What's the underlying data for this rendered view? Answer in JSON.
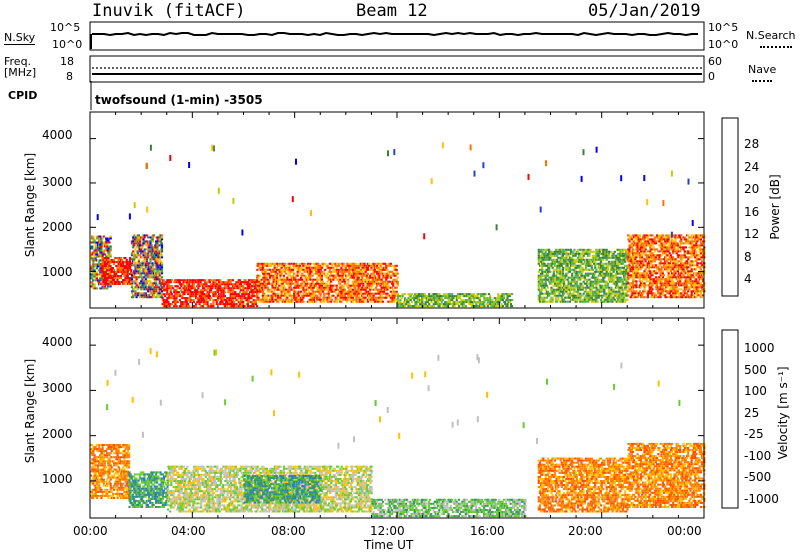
{
  "header": {
    "station": "Inuvik (fitACF)",
    "beam": "Beam 12",
    "date": "05/Jan/2019"
  },
  "top_panels": {
    "nsky_label": "N.Sky",
    "nsky_ticks": [
      "10^5",
      "10^0"
    ],
    "nsearch_label": "N.Search",
    "nsearch_ticks": [
      "10^5",
      "10^0"
    ],
    "freq_label_1": "Freq.",
    "freq_label_2": "[MHz]",
    "freq_ticks": [
      "18",
      "8"
    ],
    "nave_label": "Nave",
    "nave_ticks": [
      "60",
      "0"
    ],
    "cpid_label": "CPID",
    "cpid_value": "twofsound (1-min) -3505"
  },
  "power_panel": {
    "ylabel": "Slant Range [km]",
    "yticks": [
      "4000",
      "3000",
      "2000",
      "1000"
    ],
    "colorbar_label": "Power [dB]",
    "colorbar_ticks": [
      "28",
      "24",
      "20",
      "16",
      "12",
      "8",
      "4"
    ],
    "colors": [
      "#0000ff",
      "#2244cc",
      "#3a7f3a",
      "#55b04a",
      "#bfd000",
      "#ffc000",
      "#ff7000",
      "#ff0000"
    ]
  },
  "velocity_panel": {
    "ylabel": "Slant Range [km]",
    "yticks": [
      "4000",
      "3000",
      "2000",
      "1000"
    ],
    "colorbar_label": "Velocity [m s⁻¹]",
    "colorbar_ticks": [
      "1000",
      "500",
      "100",
      "25",
      "-25",
      "-100",
      "-500",
      "-1000"
    ],
    "colors": [
      "#1a3fbf",
      "#2a7fbf",
      "#3a9a5a",
      "#66cc33",
      "#c0c0c0",
      "#ffc000",
      "#ff8000",
      "#ff5000",
      "#ff0000"
    ]
  },
  "xaxis": {
    "ticks": [
      "00:00",
      "04:00",
      "08:00",
      "12:00",
      "16:00",
      "20:00",
      "00:00"
    ],
    "label": "Time UT"
  },
  "chart_data": [
    {
      "type": "heatmap",
      "title": "Power",
      "x": "time UT (hours 0-24)",
      "ylim": [
        180,
        4600
      ],
      "colorbar": {
        "label": "Power [dB]",
        "range": [
          0,
          32
        ]
      },
      "regions": [
        {
          "t": [
            0.0,
            0.8
          ],
          "r": [
            600,
            1800
          ],
          "level": "mixed"
        },
        {
          "t": [
            0.4,
            1.6
          ],
          "r": [
            700,
            1300
          ],
          "level": 28
        },
        {
          "t": [
            1.6,
            2.8
          ],
          "r": [
            400,
            1800
          ],
          "level": "mixed"
        },
        {
          "t": [
            2.8,
            6.5
          ],
          "r": [
            200,
            800
          ],
          "level": 28
        },
        {
          "t": [
            6.5,
            12.0
          ],
          "r": [
            300,
            1200
          ],
          "level": 22
        },
        {
          "t": [
            12.0,
            16.5
          ],
          "r": [
            200,
            500
          ],
          "level": 10
        },
        {
          "t": [
            17.5,
            21.0
          ],
          "r": [
            300,
            1500
          ],
          "level": 12
        },
        {
          "t": [
            21.0,
            24.0
          ],
          "r": [
            400,
            1800
          ],
          "level": 24
        }
      ]
    },
    {
      "type": "heatmap",
      "title": "Velocity",
      "x": "time UT (hours 0-24)",
      "ylim": [
        180,
        4600
      ],
      "colorbar": {
        "label": "Velocity [m s^-1]",
        "range": [
          -1000,
          1000
        ]
      },
      "regions": [
        {
          "t": [
            0.0,
            1.5
          ],
          "r": [
            600,
            1800
          ],
          "velocity": -200
        },
        {
          "t": [
            1.5,
            3.0
          ],
          "r": [
            400,
            1200
          ],
          "velocity": 100
        },
        {
          "t": [
            3.0,
            11.0
          ],
          "r": [
            300,
            1300
          ],
          "velocity": 0
        },
        {
          "t": [
            6.0,
            9.0
          ],
          "r": [
            500,
            1100
          ],
          "velocity": 150
        },
        {
          "t": [
            11.0,
            17.0
          ],
          "r": [
            200,
            600
          ],
          "velocity": 50
        },
        {
          "t": [
            17.5,
            21.0
          ],
          "r": [
            300,
            1500
          ],
          "velocity": -150
        },
        {
          "t": [
            21.0,
            24.0
          ],
          "r": [
            400,
            1800
          ],
          "velocity": -300
        }
      ]
    }
  ]
}
